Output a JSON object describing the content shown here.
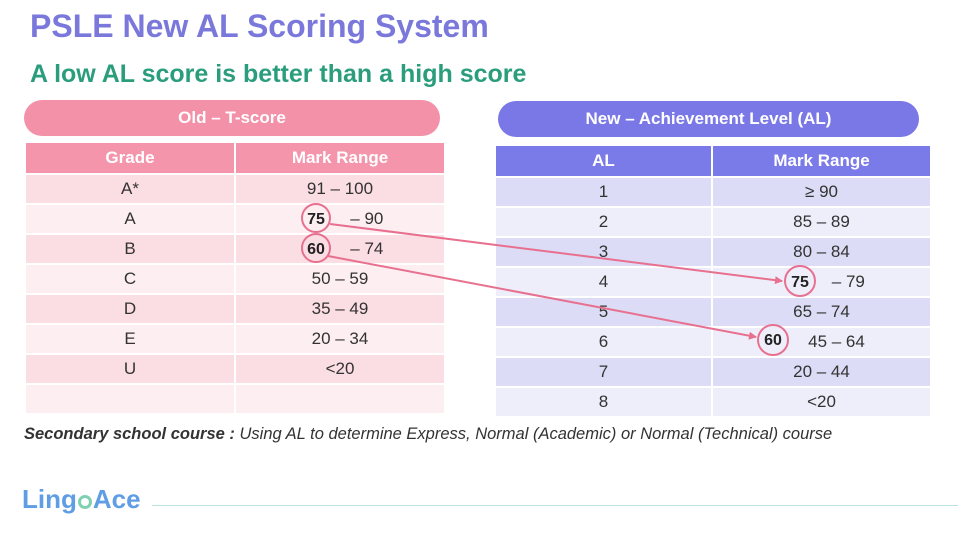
{
  "title": "PSLE New AL Scoring System",
  "subtitle": "A low AL score is better than a high score",
  "old_table": {
    "label": "Old – T-score",
    "headers": [
      "Grade",
      "Mark Range"
    ],
    "rows": [
      [
        "A*",
        "91 – 100"
      ],
      [
        "A",
        "75 – 90"
      ],
      [
        "B",
        "60 – 74"
      ],
      [
        "C",
        "50 – 59"
      ],
      [
        "D",
        "35 – 49"
      ],
      [
        "E",
        "20 – 34"
      ],
      [
        "U",
        "<20"
      ],
      [
        "",
        ""
      ]
    ]
  },
  "new_table": {
    "label": "New – Achievement Level (AL)",
    "headers": [
      "AL",
      "Mark Range"
    ],
    "rows": [
      [
        "1",
        "≥ 90"
      ],
      [
        "2",
        "85 – 89"
      ],
      [
        "3",
        "80 – 84"
      ],
      [
        "4",
        "75 – 79"
      ],
      [
        "5",
        "65 – 74"
      ],
      [
        "6",
        "45 – 64"
      ],
      [
        "7",
        "20 – 44"
      ],
      [
        "8",
        "<20"
      ]
    ]
  },
  "highlights": {
    "mark_75": "75",
    "mark_60": "60",
    "color": "#e8708f"
  },
  "note": {
    "bold": "Secondary school course :",
    "text": " Using AL to determine Express, Normal (Academic) or Normal (Technical) course"
  },
  "logo": {
    "part1": "Ling",
    "part2": "Ace"
  }
}
